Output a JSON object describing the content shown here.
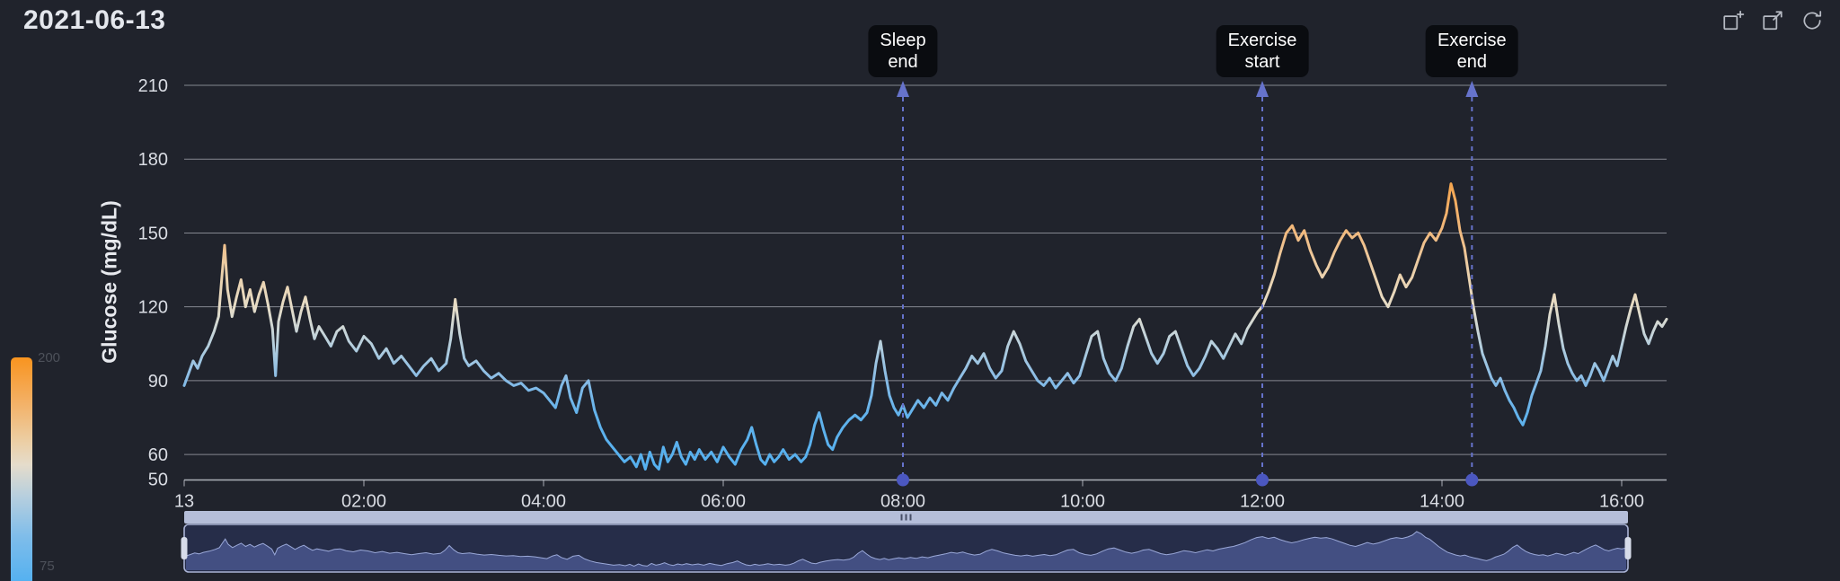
{
  "title": "2021-06-13",
  "toolbar": {
    "icons": [
      "zoom-select",
      "zoom-reset",
      "restore"
    ]
  },
  "legend_bar": {
    "top_label": "200",
    "bottom_label": "75"
  },
  "chart_data": {
    "type": "line",
    "title": "2021-06-13",
    "xlabel": "",
    "ylabel": "Glucose (mg/dL)",
    "ylim": [
      50,
      210
    ],
    "xlim_minutes": [
      0,
      990
    ],
    "grid": "horizontal",
    "y_ticks": [
      210,
      180,
      150,
      120,
      90,
      60,
      50
    ],
    "x_ticks": [
      {
        "minute": 0,
        "label": "13"
      },
      {
        "minute": 120,
        "label": "02:00"
      },
      {
        "minute": 240,
        "label": "04:00"
      },
      {
        "minute": 360,
        "label": "06:00"
      },
      {
        "minute": 480,
        "label": "08:00"
      },
      {
        "minute": 600,
        "label": "10:00"
      },
      {
        "minute": 720,
        "label": "12:00"
      },
      {
        "minute": 840,
        "label": "14:00"
      },
      {
        "minute": 960,
        "label": "16:00"
      }
    ],
    "color_scale": {
      "type": "continuous",
      "min": 75,
      "max": 200,
      "colors_low_to_high": [
        "#53b0f0",
        "#e6dcc6",
        "#f8941f"
      ]
    },
    "annotations": [
      {
        "label": "Sleep end",
        "lines": [
          "Sleep",
          "end"
        ],
        "minute": 480
      },
      {
        "label": "Exercise start",
        "lines": [
          "Exercise",
          "start"
        ],
        "minute": 720
      },
      {
        "label": "Exercise end",
        "lines": [
          "Exercise",
          "end"
        ],
        "minute": 860
      }
    ],
    "series": [
      {
        "name": "Glucose",
        "unit": "mg/dL",
        "points": [
          [
            0,
            88
          ],
          [
            3,
            93
          ],
          [
            6,
            98
          ],
          [
            9,
            95
          ],
          [
            12,
            100
          ],
          [
            16,
            104
          ],
          [
            20,
            110
          ],
          [
            23,
            116
          ],
          [
            25,
            131
          ],
          [
            27,
            145
          ],
          [
            29,
            127
          ],
          [
            32,
            116
          ],
          [
            35,
            124
          ],
          [
            38,
            131
          ],
          [
            41,
            120
          ],
          [
            44,
            127
          ],
          [
            47,
            118
          ],
          [
            50,
            125
          ],
          [
            53,
            130
          ],
          [
            56,
            121
          ],
          [
            59,
            111
          ],
          [
            61,
            92
          ],
          [
            63,
            114
          ],
          [
            66,
            122
          ],
          [
            69,
            128
          ],
          [
            72,
            119
          ],
          [
            75,
            110
          ],
          [
            78,
            118
          ],
          [
            81,
            124
          ],
          [
            84,
            115
          ],
          [
            87,
            107
          ],
          [
            90,
            112
          ],
          [
            94,
            108
          ],
          [
            98,
            104
          ],
          [
            102,
            110
          ],
          [
            106,
            112
          ],
          [
            110,
            106
          ],
          [
            115,
            102
          ],
          [
            120,
            108
          ],
          [
            125,
            105
          ],
          [
            130,
            99
          ],
          [
            135,
            103
          ],
          [
            140,
            97
          ],
          [
            145,
            100
          ],
          [
            150,
            96
          ],
          [
            155,
            92
          ],
          [
            160,
            96
          ],
          [
            165,
            99
          ],
          [
            170,
            94
          ],
          [
            175,
            97
          ],
          [
            178,
            107
          ],
          [
            181,
            123
          ],
          [
            184,
            109
          ],
          [
            187,
            99
          ],
          [
            190,
            96
          ],
          [
            195,
            98
          ],
          [
            200,
            94
          ],
          [
            205,
            91
          ],
          [
            210,
            93
          ],
          [
            215,
            90
          ],
          [
            220,
            88
          ],
          [
            225,
            89
          ],
          [
            230,
            86
          ],
          [
            235,
            87
          ],
          [
            240,
            85
          ],
          [
            244,
            82
          ],
          [
            248,
            79
          ],
          [
            252,
            88
          ],
          [
            255,
            92
          ],
          [
            258,
            83
          ],
          [
            262,
            77
          ],
          [
            266,
            87
          ],
          [
            270,
            90
          ],
          [
            274,
            78
          ],
          [
            278,
            71
          ],
          [
            282,
            66
          ],
          [
            286,
            63
          ],
          [
            290,
            60
          ],
          [
            294,
            57
          ],
          [
            298,
            59
          ],
          [
            302,
            55
          ],
          [
            305,
            60
          ],
          [
            308,
            54
          ],
          [
            311,
            61
          ],
          [
            314,
            56
          ],
          [
            317,
            54
          ],
          [
            320,
            63
          ],
          [
            323,
            57
          ],
          [
            326,
            60
          ],
          [
            329,
            65
          ],
          [
            332,
            59
          ],
          [
            335,
            56
          ],
          [
            338,
            61
          ],
          [
            341,
            58
          ],
          [
            344,
            62
          ],
          [
            348,
            58
          ],
          [
            352,
            61
          ],
          [
            356,
            57
          ],
          [
            360,
            63
          ],
          [
            364,
            59
          ],
          [
            368,
            56
          ],
          [
            372,
            62
          ],
          [
            376,
            66
          ],
          [
            379,
            71
          ],
          [
            382,
            64
          ],
          [
            385,
            58
          ],
          [
            388,
            56
          ],
          [
            391,
            60
          ],
          [
            394,
            57
          ],
          [
            397,
            59
          ],
          [
            400,
            62
          ],
          [
            404,
            58
          ],
          [
            408,
            60
          ],
          [
            412,
            57
          ],
          [
            415,
            59
          ],
          [
            418,
            64
          ],
          [
            421,
            72
          ],
          [
            424,
            77
          ],
          [
            427,
            70
          ],
          [
            430,
            64
          ],
          [
            433,
            62
          ],
          [
            436,
            67
          ],
          [
            440,
            71
          ],
          [
            444,
            74
          ],
          [
            448,
            76
          ],
          [
            452,
            74
          ],
          [
            456,
            77
          ],
          [
            459,
            84
          ],
          [
            462,
            97
          ],
          [
            465,
            106
          ],
          [
            468,
            94
          ],
          [
            471,
            84
          ],
          [
            474,
            79
          ],
          [
            477,
            76
          ],
          [
            480,
            80
          ],
          [
            483,
            75
          ],
          [
            486,
            78
          ],
          [
            490,
            82
          ],
          [
            494,
            79
          ],
          [
            498,
            83
          ],
          [
            502,
            80
          ],
          [
            506,
            85
          ],
          [
            510,
            82
          ],
          [
            514,
            87
          ],
          [
            518,
            91
          ],
          [
            522,
            95
          ],
          [
            526,
            100
          ],
          [
            530,
            97
          ],
          [
            534,
            101
          ],
          [
            538,
            95
          ],
          [
            542,
            91
          ],
          [
            546,
            94
          ],
          [
            550,
            104
          ],
          [
            554,
            110
          ],
          [
            558,
            105
          ],
          [
            562,
            98
          ],
          [
            566,
            94
          ],
          [
            570,
            90
          ],
          [
            574,
            88
          ],
          [
            578,
            91
          ],
          [
            582,
            87
          ],
          [
            586,
            90
          ],
          [
            590,
            93
          ],
          [
            594,
            89
          ],
          [
            598,
            92
          ],
          [
            602,
            100
          ],
          [
            606,
            108
          ],
          [
            610,
            110
          ],
          [
            614,
            99
          ],
          [
            618,
            93
          ],
          [
            622,
            90
          ],
          [
            626,
            95
          ],
          [
            630,
            104
          ],
          [
            634,
            112
          ],
          [
            638,
            115
          ],
          [
            642,
            108
          ],
          [
            646,
            101
          ],
          [
            650,
            97
          ],
          [
            654,
            101
          ],
          [
            658,
            108
          ],
          [
            662,
            110
          ],
          [
            666,
            103
          ],
          [
            670,
            96
          ],
          [
            674,
            92
          ],
          [
            678,
            95
          ],
          [
            682,
            100
          ],
          [
            686,
            106
          ],
          [
            690,
            103
          ],
          [
            694,
            99
          ],
          [
            698,
            104
          ],
          [
            702,
            109
          ],
          [
            706,
            105
          ],
          [
            710,
            111
          ],
          [
            714,
            115
          ],
          [
            717,
            118
          ],
          [
            720,
            120
          ],
          [
            724,
            126
          ],
          [
            728,
            133
          ],
          [
            732,
            142
          ],
          [
            736,
            150
          ],
          [
            740,
            153
          ],
          [
            744,
            147
          ],
          [
            748,
            151
          ],
          [
            752,
            143
          ],
          [
            756,
            137
          ],
          [
            760,
            132
          ],
          [
            764,
            136
          ],
          [
            768,
            142
          ],
          [
            772,
            147
          ],
          [
            776,
            151
          ],
          [
            780,
            148
          ],
          [
            784,
            150
          ],
          [
            788,
            145
          ],
          [
            792,
            138
          ],
          [
            796,
            131
          ],
          [
            800,
            124
          ],
          [
            804,
            120
          ],
          [
            808,
            126
          ],
          [
            812,
            133
          ],
          [
            816,
            128
          ],
          [
            820,
            132
          ],
          [
            824,
            139
          ],
          [
            828,
            146
          ],
          [
            832,
            150
          ],
          [
            836,
            147
          ],
          [
            840,
            152
          ],
          [
            843,
            158
          ],
          [
            846,
            170
          ],
          [
            849,
            163
          ],
          [
            852,
            151
          ],
          [
            855,
            144
          ],
          [
            858,
            132
          ],
          [
            861,
            120
          ],
          [
            864,
            110
          ],
          [
            867,
            101
          ],
          [
            870,
            96
          ],
          [
            873,
            91
          ],
          [
            876,
            88
          ],
          [
            879,
            91
          ],
          [
            882,
            86
          ],
          [
            885,
            82
          ],
          [
            888,
            79
          ],
          [
            891,
            75
          ],
          [
            894,
            72
          ],
          [
            897,
            77
          ],
          [
            900,
            84
          ],
          [
            903,
            89
          ],
          [
            906,
            94
          ],
          [
            909,
            104
          ],
          [
            912,
            117
          ],
          [
            915,
            125
          ],
          [
            918,
            113
          ],
          [
            921,
            103
          ],
          [
            924,
            97
          ],
          [
            927,
            93
          ],
          [
            930,
            90
          ],
          [
            933,
            92
          ],
          [
            936,
            88
          ],
          [
            939,
            92
          ],
          [
            942,
            97
          ],
          [
            945,
            94
          ],
          [
            948,
            90
          ],
          [
            951,
            95
          ],
          [
            954,
            100
          ],
          [
            957,
            96
          ],
          [
            960,
            104
          ],
          [
            963,
            112
          ],
          [
            966,
            119
          ],
          [
            969,
            125
          ],
          [
            972,
            117
          ],
          [
            975,
            109
          ],
          [
            978,
            105
          ],
          [
            981,
            110
          ],
          [
            984,
            114
          ],
          [
            987,
            112
          ],
          [
            990,
            115
          ]
        ]
      }
    ]
  }
}
